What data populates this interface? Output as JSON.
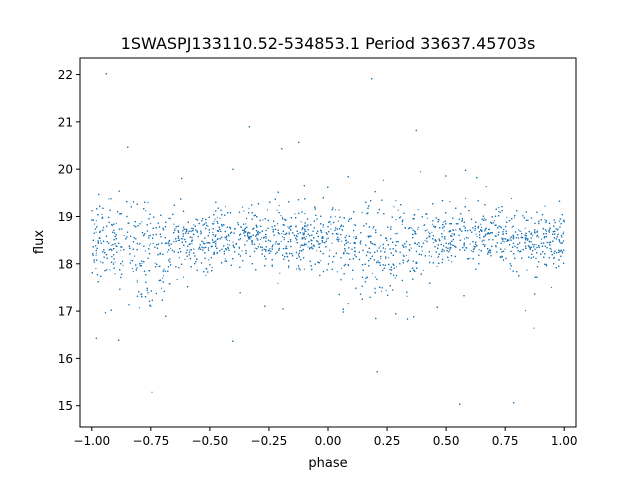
{
  "chart_data": {
    "type": "scatter",
    "title": "1SWASPJ133110.52-534853.1 Period 33637.45703s",
    "xlabel": "phase",
    "ylabel": "flux",
    "xlim": [
      -1.05,
      1.05
    ],
    "ylim": [
      14.55,
      22.35
    ],
    "x_ticks": [
      -1.0,
      -0.75,
      -0.5,
      -0.25,
      0.0,
      0.25,
      0.5,
      0.75,
      1.0
    ],
    "x_tick_labels": [
      "−1.00",
      "−0.75",
      "−0.50",
      "−0.25",
      "0.00",
      "0.25",
      "0.50",
      "0.75",
      "1.00"
    ],
    "y_ticks": [
      15,
      16,
      17,
      18,
      19,
      20,
      21,
      22
    ],
    "y_tick_labels": [
      "15",
      "16",
      "17",
      "18",
      "19",
      "20",
      "21",
      "22"
    ],
    "grid": false,
    "legend": "none",
    "series": [
      {
        "color": "#1f77b4",
        "marker_size": 0.6,
        "x": [
          -1.0,
          -0.9,
          -0.8,
          -0.75,
          -0.7,
          -0.6,
          -0.5,
          -0.4,
          -0.3,
          -0.2,
          -0.1,
          0.0,
          0.1,
          0.2,
          0.25,
          0.3,
          0.4,
          0.5,
          0.6,
          0.7,
          0.8,
          0.9,
          1.0
        ],
        "y_median": [
          18.5,
          18.45,
          18.3,
          18.2,
          18.3,
          18.5,
          18.55,
          18.6,
          18.6,
          18.55,
          18.5,
          18.5,
          18.45,
          18.3,
          18.2,
          18.3,
          18.5,
          18.55,
          18.6,
          18.6,
          18.55,
          18.5,
          18.5
        ],
        "y_band_low": [
          17.6,
          17.0,
          16.3,
          16.2,
          16.6,
          17.8,
          17.9,
          17.9,
          17.9,
          17.9,
          17.9,
          17.8,
          17.3,
          16.4,
          16.2,
          16.5,
          17.8,
          17.9,
          17.9,
          17.9,
          17.9,
          17.9,
          17.6
        ],
        "y_band_high": [
          19.5,
          19.5,
          19.4,
          19.4,
          19.4,
          19.5,
          19.6,
          19.6,
          19.6,
          19.6,
          19.5,
          19.5,
          19.5,
          19.4,
          19.4,
          19.4,
          19.5,
          19.6,
          19.6,
          19.6,
          19.6,
          19.5,
          19.5
        ],
        "y_outlier_range": [
          14.9,
          22.1
        ]
      }
    ]
  }
}
